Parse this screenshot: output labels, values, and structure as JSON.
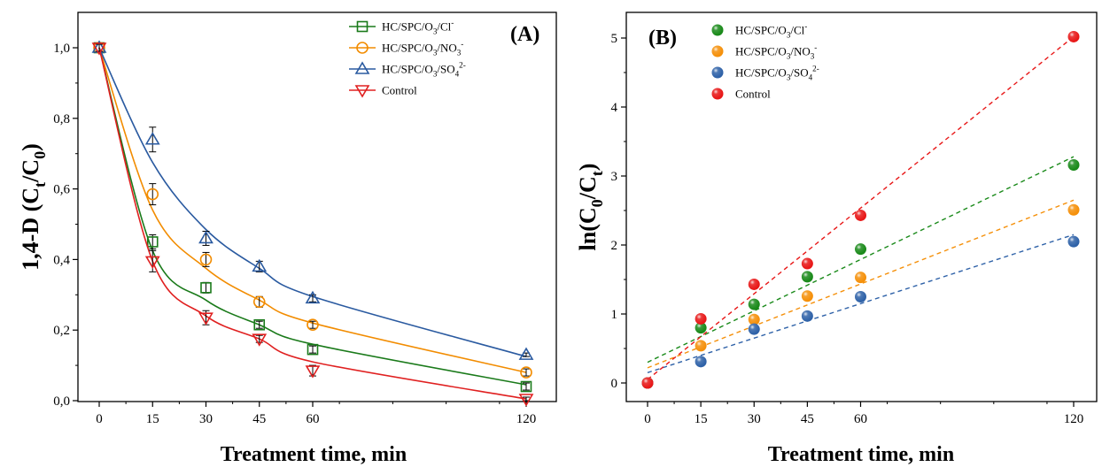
{
  "chart_data": [
    {
      "type": "line",
      "panel_label": "(A)",
      "xlabel": "Treatment time, min",
      "ylabel_parts": [
        "1,4-D (C",
        "t",
        "/C",
        "0",
        ")"
      ],
      "x": [
        0,
        15,
        30,
        45,
        60,
        120
      ],
      "x_ticks": [
        0,
        15,
        30,
        45,
        60,
        120
      ],
      "y_ticks": [
        "0,0",
        "0,2",
        "0,4",
        "0,6",
        "0,8",
        "1,0"
      ],
      "ylim": [
        0,
        1.05
      ],
      "grid": false,
      "legend_position": "top-right",
      "series": [
        {
          "name": "HC/SPC/O3/Cl-",
          "legend_parts": [
            "HC/SPC/O",
            "3",
            "/Cl",
            "-"
          ],
          "color": "#1a7a1a",
          "marker": "square",
          "values": [
            1.0,
            0.45,
            0.32,
            0.215,
            0.145,
            0.04
          ],
          "errors": [
            0.01,
            0.02,
            0.015,
            0.01,
            0.01,
            0.01
          ],
          "fit": [
            1.0,
            0.425,
            0.285,
            0.215,
            0.16,
            0.045
          ]
        },
        {
          "name": "HC/SPC/O3/NO3-",
          "legend_parts": [
            "HC/SPC/O",
            "3",
            "/NO",
            "3",
            "-"
          ],
          "color": "#f28c00",
          "marker": "circle",
          "values": [
            1.0,
            0.585,
            0.4,
            0.28,
            0.215,
            0.08
          ],
          "errors": [
            0.01,
            0.03,
            0.02,
            0.015,
            0.01,
            0.01
          ],
          "fit": [
            1.0,
            0.54,
            0.375,
            0.285,
            0.22,
            0.08
          ]
        },
        {
          "name": "HC/SPC/O3/SO42-",
          "legend_parts": [
            "HC/SPC/O",
            "3",
            "/SO",
            "4",
            "2-"
          ],
          "color": "#2a5aa0",
          "marker": "triangle-up",
          "values": [
            1.0,
            0.74,
            0.46,
            0.38,
            0.29,
            0.13
          ],
          "errors": [
            0.01,
            0.035,
            0.02,
            0.015,
            0.01,
            0.005
          ],
          "fit": [
            1.0,
            0.675,
            0.485,
            0.375,
            0.295,
            0.125
          ]
        },
        {
          "name": "Control",
          "legend_parts": [
            "Control"
          ],
          "color": "#e02020",
          "marker": "triangle-down",
          "values": [
            1.0,
            0.395,
            0.235,
            0.175,
            0.085,
            0.005
          ],
          "errors": [
            0.01,
            0.03,
            0.02,
            0.01,
            0.015,
            0.005
          ],
          "fit": [
            1.0,
            0.395,
            0.24,
            0.175,
            0.11,
            0.005
          ]
        }
      ]
    },
    {
      "type": "scatter",
      "panel_label": "(B)",
      "xlabel": "Treatment time, min",
      "ylabel_parts": [
        "ln(C",
        "0",
        "/C",
        "t",
        ")"
      ],
      "x": [
        0,
        15,
        30,
        45,
        60,
        120
      ],
      "x_ticks": [
        0,
        15,
        30,
        45,
        60,
        120
      ],
      "y_ticks": [
        "0",
        "1",
        "2",
        "3",
        "4",
        "5"
      ],
      "ylim": [
        -0.2,
        5.3
      ],
      "grid": false,
      "legend_position": "top-left",
      "series": [
        {
          "name": "HC/SPC/O3/Cl-",
          "legend_parts": [
            "HC/SPC/O",
            "3",
            "/Cl",
            "-"
          ],
          "color": "#1a8a1a",
          "values": [
            0.0,
            0.8,
            1.14,
            1.54,
            1.94,
            3.16
          ],
          "trend": [
            0.3,
            3.28
          ]
        },
        {
          "name": "HC/SPC/O3/NO3-",
          "legend_parts": [
            "HC/SPC/O",
            "3",
            "/NO",
            "3",
            "-"
          ],
          "color": "#f5900a",
          "values": [
            0.0,
            0.54,
            0.92,
            1.26,
            1.53,
            2.51
          ],
          "trend": [
            0.22,
            2.65
          ]
        },
        {
          "name": "HC/SPC/O3/SO42-",
          "legend_parts": [
            "HC/SPC/O",
            "3",
            "/SO",
            "4",
            "2-"
          ],
          "color": "#2f62a8",
          "values": [
            0.0,
            0.31,
            0.78,
            0.97,
            1.25,
            2.05
          ],
          "trend": [
            0.15,
            2.15
          ]
        },
        {
          "name": "Control",
          "legend_parts": [
            "Control"
          ],
          "color": "#e81818",
          "values": [
            0.0,
            0.93,
            1.43,
            1.73,
            2.43,
            5.02
          ],
          "trend": [
            0.05,
            5.02
          ]
        }
      ]
    }
  ]
}
